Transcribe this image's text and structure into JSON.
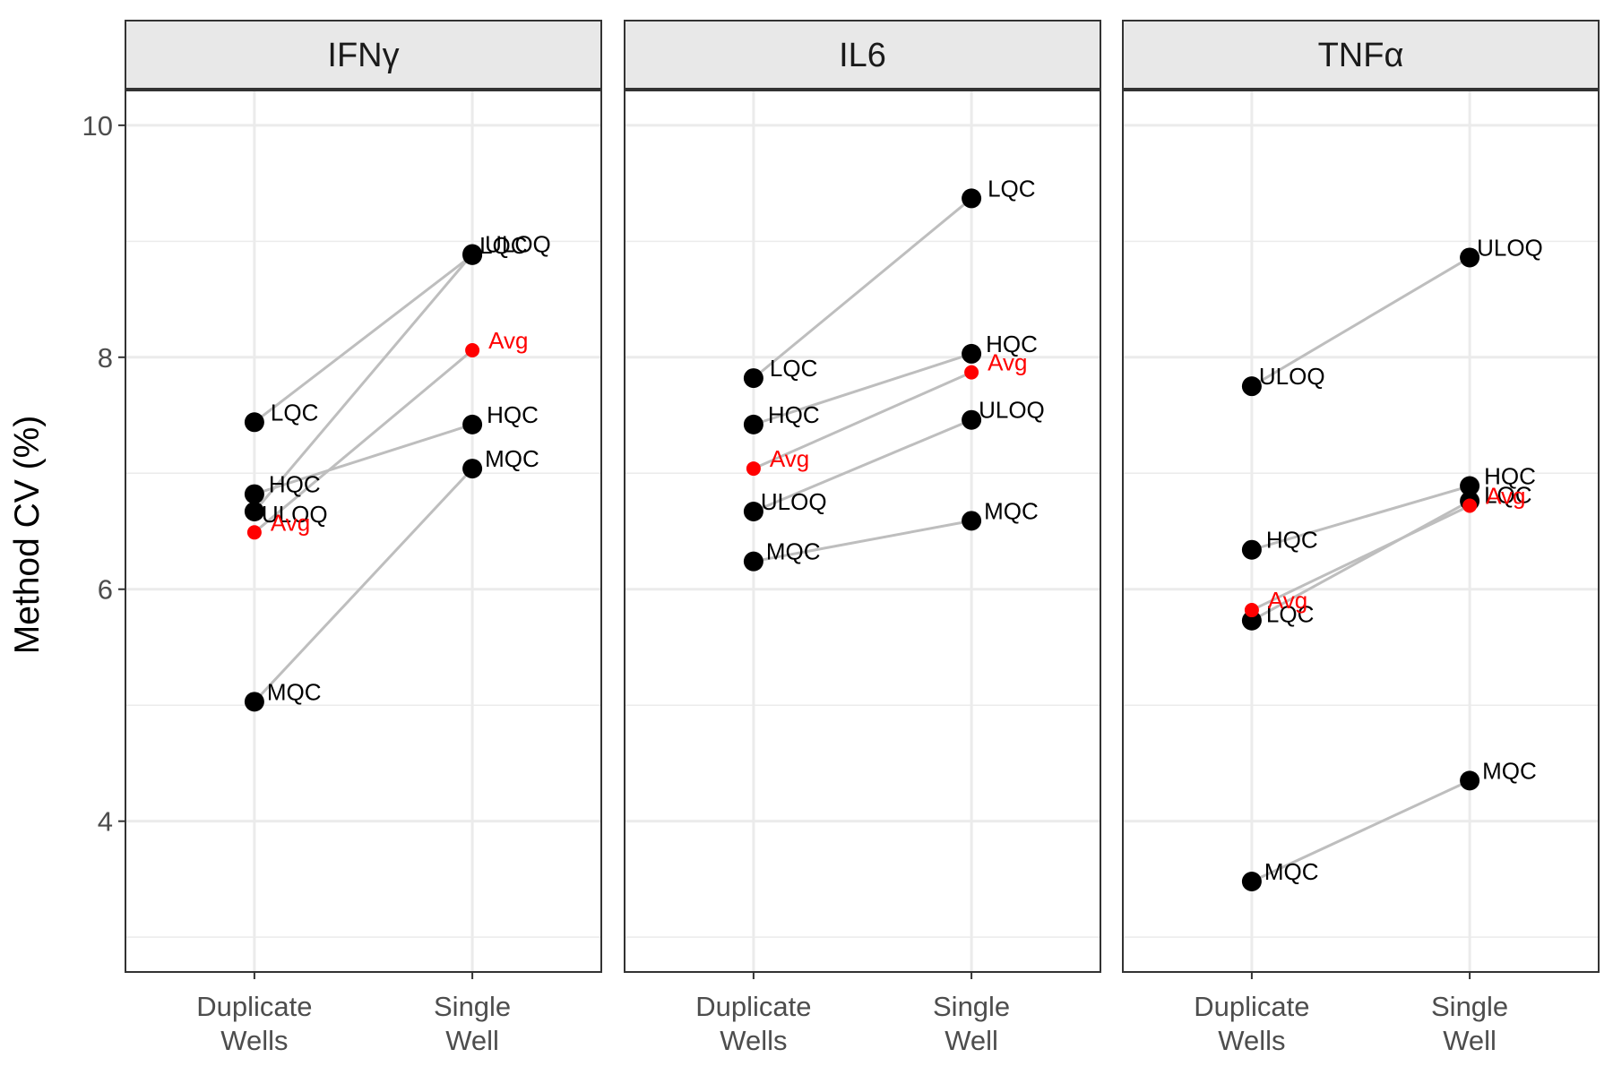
{
  "chart_data": {
    "type": "scatter",
    "ylabel": "Method CV (%)",
    "xlabel": "",
    "categories": [
      "Duplicate Wells",
      "Single Well"
    ],
    "category_lines": [
      [
        "Duplicate",
        "Wells"
      ],
      [
        "Single",
        "Well"
      ]
    ],
    "ylim": [
      2.7,
      10.3
    ],
    "yticks": [
      4,
      6,
      8,
      10
    ],
    "grid": true,
    "legend": "none",
    "colors": {
      "point": "#000000",
      "avg": "#ff0000",
      "line": "#bebebe",
      "grid": "#ebebeb",
      "strip": "#e8e8e8",
      "border": "#333333"
    },
    "panels": [
      {
        "name": "IFNγ",
        "series": [
          {
            "name": "LQC",
            "values": [
              7.44,
              8.88
            ]
          },
          {
            "name": "HQC",
            "values": [
              6.82,
              7.42
            ]
          },
          {
            "name": "ULOQ",
            "values": [
              6.67,
              8.89
            ]
          },
          {
            "name": "MQC",
            "values": [
              5.03,
              7.04
            ]
          },
          {
            "name": "Avg",
            "values": [
              6.49,
              8.06
            ]
          }
        ]
      },
      {
        "name": "IL6",
        "series": [
          {
            "name": "LQC",
            "values": [
              7.82,
              9.37
            ]
          },
          {
            "name": "HQC",
            "values": [
              7.42,
              8.03
            ]
          },
          {
            "name": "ULOQ",
            "values": [
              6.67,
              7.46
            ]
          },
          {
            "name": "MQC",
            "values": [
              6.24,
              6.59
            ]
          },
          {
            "name": "Avg",
            "values": [
              7.04,
              7.87
            ]
          }
        ]
      },
      {
        "name": "TNFα",
        "series": [
          {
            "name": "ULOQ",
            "values": [
              7.75,
              8.86
            ]
          },
          {
            "name": "HQC",
            "values": [
              6.34,
              6.89
            ]
          },
          {
            "name": "LQC",
            "values": [
              5.73,
              6.76
            ]
          },
          {
            "name": "MQC",
            "values": [
              3.48,
              4.35
            ]
          },
          {
            "name": "Avg",
            "values": [
              5.82,
              6.72
            ]
          }
        ]
      }
    ]
  }
}
